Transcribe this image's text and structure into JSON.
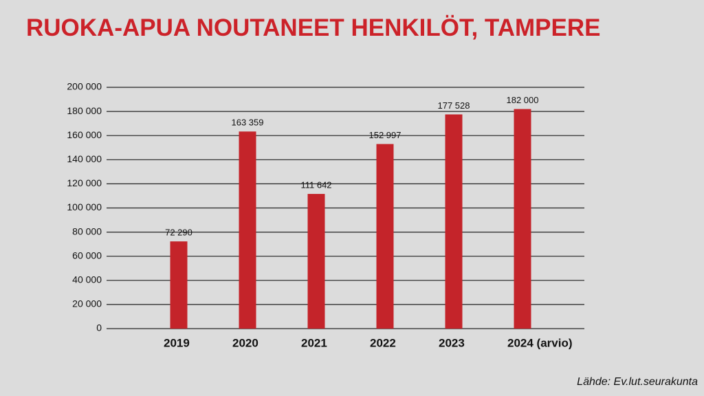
{
  "chart_data": {
    "type": "bar",
    "title": "RUOKA-APUA NOUTANEET HENKILÖT, TAMPERE",
    "categories": [
      "2019",
      "2020",
      "2021",
      "2022",
      "2023",
      "2024 (arvio)"
    ],
    "values": [
      72290,
      163359,
      111642,
      152997,
      177528,
      182000
    ],
    "value_labels": [
      "72 290",
      "163 359",
      "111 642",
      "152 997",
      "177 528",
      "182 000"
    ],
    "color": "#c4242a",
    "ylim": [
      0,
      200000
    ],
    "yticks": [
      0,
      {
        "value": 20000,
        "label": "20 000"
      },
      {
        "value": 40000,
        "label": "40 000"
      },
      {
        "value": 60000,
        "label": "60 000"
      },
      {
        "value": 80000,
        "label": "80 000"
      },
      {
        "value": 100000,
        "label": "100 000"
      },
      {
        "value": 120000,
        "label": "120 000"
      },
      {
        "value": 140000,
        "label": "140 000"
      },
      {
        "value": 160000,
        "label": "160 000"
      },
      {
        "value": 180000,
        "label": "180 000"
      },
      {
        "value": 200000,
        "label": "200 000"
      }
    ],
    "grid": true,
    "source": "Lähde: Ev.lut.seurakunta"
  }
}
